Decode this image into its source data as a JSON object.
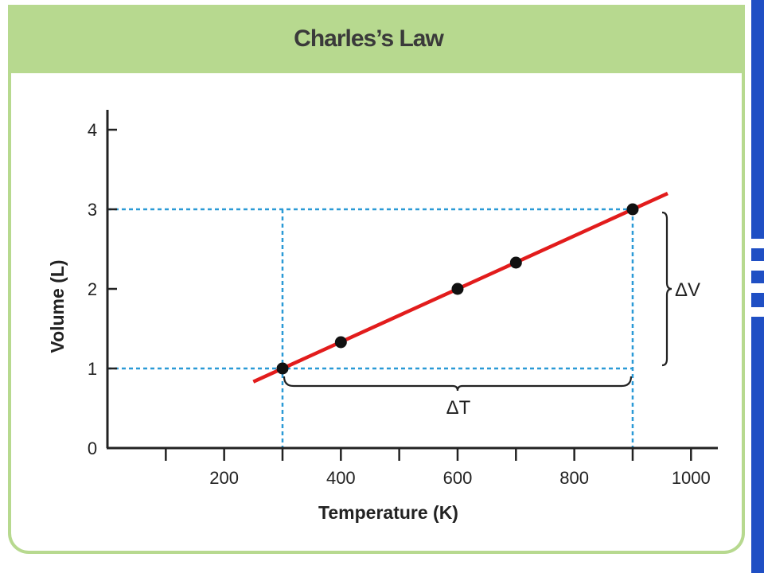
{
  "colors": {
    "panel_green": "#b7d98f",
    "fit_line": "#e21c1c",
    "guide_line": "#2b9ad6",
    "point": "#111111",
    "side_bar": "#1f4fc4"
  },
  "chart_data": {
    "type": "scatter",
    "title": "Charles’s Law",
    "xlabel": "Temperature (K)",
    "ylabel": "Volume (L)",
    "xlim": [
      0,
      1000
    ],
    "ylim": [
      0,
      4
    ],
    "x_ticks": [
      100,
      200,
      300,
      400,
      500,
      600,
      700,
      800,
      900,
      1000
    ],
    "x_tick_labels": [
      "200",
      "400",
      "600",
      "800",
      "1000"
    ],
    "x_labeled_values": [
      200,
      400,
      600,
      800,
      1000
    ],
    "y_ticks": [
      0,
      1,
      2,
      3,
      4
    ],
    "y_tick_labels": [
      "0",
      "1",
      "2",
      "3",
      "4"
    ],
    "points": [
      {
        "x": 300,
        "y": 1.0
      },
      {
        "x": 400,
        "y": 1.33
      },
      {
        "x": 600,
        "y": 2.0
      },
      {
        "x": 700,
        "y": 2.33
      },
      {
        "x": 900,
        "y": 3.0
      }
    ],
    "fit_line": {
      "x_start": 250,
      "x_end": 960,
      "slope": 0.003333,
      "intercept": 0
    },
    "guides": [
      {
        "kind": "horizontal",
        "y": 3,
        "x_to": 900
      },
      {
        "kind": "horizontal",
        "y": 1,
        "x_to": 900
      },
      {
        "kind": "vertical",
        "x": 300,
        "y_to": 3
      },
      {
        "kind": "vertical",
        "x": 900,
        "y_to": 3
      }
    ],
    "annotations": {
      "delta_t": "ΔT",
      "delta_v": "ΔV",
      "delta_t_range": [
        300,
        900
      ],
      "delta_v_range": [
        1,
        3
      ]
    },
    "grid": false
  }
}
